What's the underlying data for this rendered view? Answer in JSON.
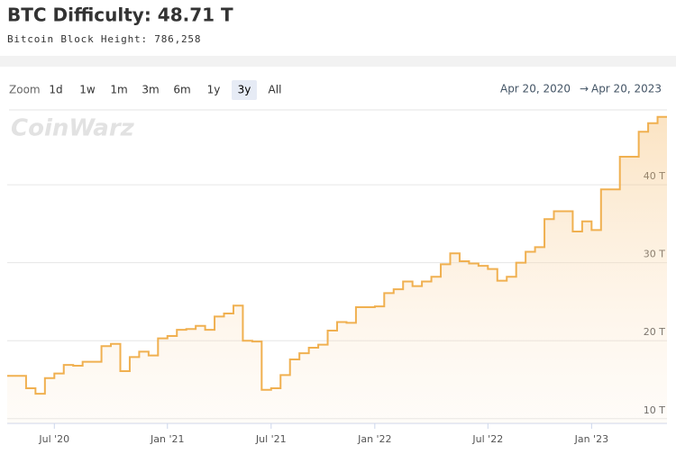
{
  "header": {
    "title": "BTC Difficulty: 48.71 T",
    "subtitle": "Bitcoin Block Height: 786,258"
  },
  "toolbar": {
    "zoom_label": "Zoom",
    "buttons": [
      "1d",
      "1w",
      "1m",
      "3m",
      "6m",
      "1y",
      "3y",
      "All"
    ],
    "active": "3y",
    "range_from": "Apr 20, 2020",
    "range_arrow": "→",
    "range_to": "Apr 20, 2023"
  },
  "watermark": "CoinWarz",
  "chart_data": {
    "type": "step-area",
    "color": "#f0b050",
    "categories": [
      null,
      null,
      null,
      null,
      null,
      "Jul '20",
      null,
      null,
      null,
      null,
      null,
      null,
      null,
      null,
      null,
      null,
      null,
      "Jan '21",
      null,
      null,
      null,
      null,
      null,
      null,
      null,
      null,
      null,
      null,
      "Jul '21",
      null,
      null,
      null,
      null,
      null,
      null,
      null,
      null,
      null,
      null,
      "Jan '22",
      null,
      null,
      null,
      null,
      null,
      null,
      null,
      null,
      null,
      null,
      null,
      "Jul '22",
      null,
      null,
      null,
      null,
      null,
      null,
      null,
      null,
      null,
      null,
      "Jan '23",
      null,
      null,
      null,
      null,
      null,
      null,
      null
    ],
    "values": [
      15.5,
      15.5,
      13.9,
      13.2,
      15.2,
      15.8,
      16.9,
      16.8,
      17.3,
      17.3,
      19.3,
      19.6,
      16.1,
      17.9,
      18.6,
      18.1,
      20.3,
      20.6,
      21.4,
      21.5,
      21.9,
      21.4,
      23.1,
      23.5,
      24.5,
      20.0,
      19.9,
      13.7,
      13.9,
      15.6,
      17.6,
      18.4,
      19.1,
      19.5,
      21.3,
      22.4,
      22.3,
      24.3,
      24.3,
      24.4,
      26.1,
      26.6,
      27.6,
      27.0,
      27.6,
      28.2,
      29.8,
      31.2,
      30.2,
      29.9,
      29.6,
      29.2,
      27.7,
      28.2,
      30.0,
      31.4,
      32.0,
      35.6,
      36.6,
      36.6,
      34.0,
      35.3,
      34.2,
      39.4,
      39.4,
      43.6,
      43.6,
      46.8,
      47.9,
      48.7
    ],
    "ylim": [
      9.4,
      49.6
    ],
    "yticks": [
      {
        "value": 10,
        "label": "10 T"
      },
      {
        "value": 20,
        "label": "20 T"
      },
      {
        "value": 30,
        "label": "30 T"
      },
      {
        "value": 40,
        "label": "40 T"
      }
    ],
    "grid": true
  }
}
